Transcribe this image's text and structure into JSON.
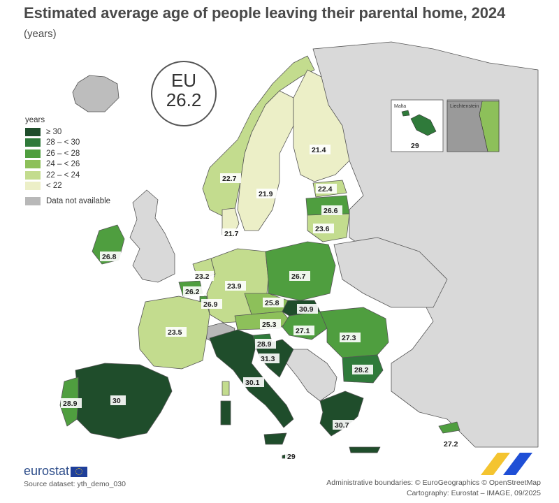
{
  "title": "Estimated average age of people leaving their parental home, 2024",
  "subtitle": "(years)",
  "eu": {
    "label": "EU",
    "value": "26.2"
  },
  "legend": {
    "title": "years",
    "items": [
      {
        "label": "≥ 30",
        "color": "#1f4d2b"
      },
      {
        "label": "28 – < 30",
        "color": "#2f7a3a"
      },
      {
        "label": "26 – < 28",
        "color": "#4f9e3f"
      },
      {
        "label": "24 – < 26",
        "color": "#8dc05a"
      },
      {
        "label": "22 – < 24",
        "color": "#c3dc8e"
      },
      {
        "label": "< 22",
        "color": "#ecefc7"
      }
    ],
    "na_label": "Data not available",
    "na_color": "#b8b8b8"
  },
  "colors": {
    "non_eu": "#d9d9d9",
    "border": "#555555",
    "sea": "#ffffff"
  },
  "values": {
    "finland": "21.4",
    "sweden": "21.9",
    "norway": "22.7",
    "estonia": "22.4",
    "latvia": "26.6",
    "lithuania": "23.6",
    "denmark": "21.7",
    "ireland": "26.8",
    "netherlands": "23.2",
    "belgium": "26.2",
    "luxembourg": "26.9",
    "germany": "23.9",
    "poland": "26.7",
    "czechia": "25.8",
    "slovakia": "30.9",
    "austria": "25.3",
    "hungary": "27.1",
    "romania": "27.3",
    "france": "23.5",
    "slovenia": "28.9",
    "croatia": "31.3",
    "italy": "30.1",
    "bulgaria": "28.2",
    "portugal": "28.9",
    "spain": "30",
    "greece": "30.7",
    "malta_main": "29",
    "malta_inset": "29",
    "cyprus": "27.2"
  },
  "insets": {
    "malta_label": "Malta",
    "liechtenstein_label": "Liechtenstein"
  },
  "logo": "eurostat",
  "source": "Source dataset: yth_demo_030",
  "credits": {
    "line1": "Administrative boundaries: © EuroGeographics © OpenStreetMap",
    "line2": "Cartography: Eurostat – IMAGE, 09/2025"
  }
}
